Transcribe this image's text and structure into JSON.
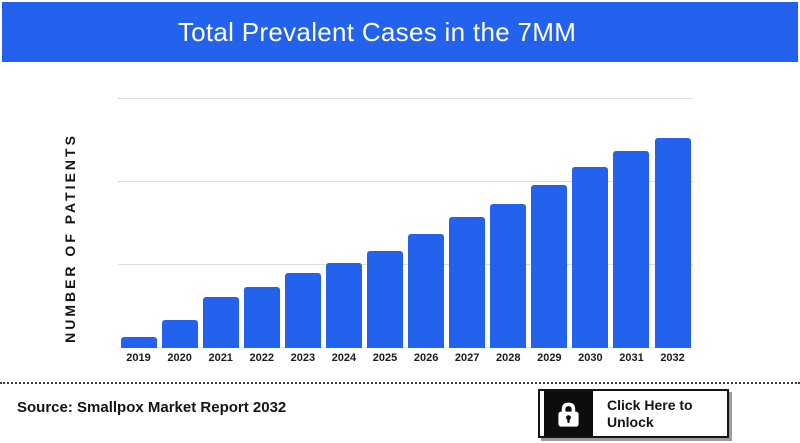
{
  "banner": {
    "title": "Total Prevalent Cases in the 7MM",
    "bg_color": "#2262ec",
    "text_color": "#ffffff"
  },
  "chart_data": {
    "type": "bar",
    "title": "Total Prevalent Cases in the 7MM",
    "ylabel": "NUMBER OF PATIENTS",
    "xlabel": "",
    "categories": [
      "2019",
      "2020",
      "2021",
      "2022",
      "2023",
      "2024",
      "2025",
      "2026",
      "2027",
      "2028",
      "2029",
      "2030",
      "2031",
      "2032"
    ],
    "values_relative_pct": [
      5.2,
      13.2,
      24.3,
      29.0,
      35.7,
      40.4,
      46.4,
      54.4,
      62.3,
      68.5,
      77.8,
      86.1,
      93.7,
      100
    ],
    "value_axis_tick_labels": "none visible",
    "gridlines": "3 evenly spaced horizontal light-gray lines above baseline",
    "legend_position": "none",
    "bar_color": "#2262ec",
    "gridline_color": "#dcdcdc"
  },
  "footer": {
    "source_text": "Source: Smallpox Market Report 2032",
    "unlock_button": {
      "label_line1": "Click Here to",
      "label_line2": "Unlock",
      "icon": "lock-icon"
    }
  },
  "colors": {
    "accent_blue": "#2262ec",
    "gridline": "#dcdcdc",
    "text_dark": "#151515",
    "button_shadow": "#9c9c9c",
    "background": "#ffffff"
  }
}
